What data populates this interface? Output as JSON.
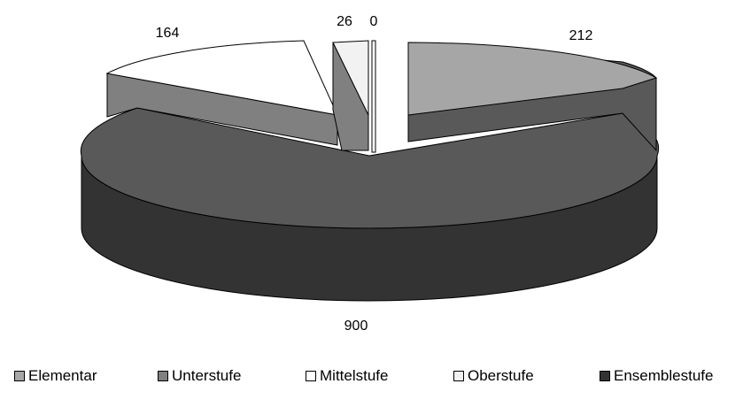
{
  "chart_data": {
    "type": "pie",
    "categories": [
      "Elementar",
      "Unterstufe",
      "Mittelstufe",
      "Oberstufe",
      "Ensemblestufe"
    ],
    "values": [
      212,
      164,
      26,
      0,
      900
    ],
    "data_labels": [
      "212",
      "164",
      "26",
      "0",
      "900"
    ],
    "legend": [
      "Elementar",
      "Unterstufe",
      "Mittelstufe",
      "Oberstufe",
      "Ensemblestufe"
    ],
    "legend_position": "bottom",
    "exploded": true,
    "three_d": true,
    "colors": [
      "#a6a6a6",
      "#808080",
      "#ffffff",
      "#f2f2f2",
      "#595959"
    ]
  }
}
